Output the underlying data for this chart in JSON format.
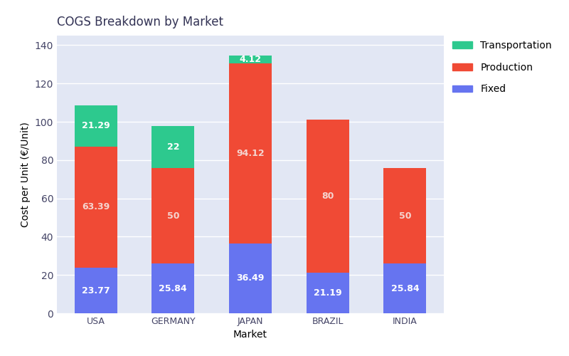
{
  "markets": [
    "USA",
    "GERMANY",
    "JAPAN",
    "BRAZIL",
    "INDIA"
  ],
  "fixed": [
    23.77,
    25.84,
    36.49,
    21.19,
    25.84
  ],
  "production": [
    63.39,
    50.0,
    94.12,
    80.0,
    50.0
  ],
  "transportation": [
    21.29,
    22.0,
    4.12,
    0.0,
    0.0
  ],
  "fixed_color": "#6674f0",
  "production_color": "#f04a35",
  "transportation_color": "#2dc98e",
  "title": "COGS Breakdown by Market",
  "xlabel": "Market",
  "ylabel": "Cost per Unit (€/Unit)",
  "ylim": [
    0,
    145
  ],
  "yticks": [
    0,
    20,
    40,
    60,
    80,
    100,
    120,
    140
  ],
  "plot_bg_color": "#e2e7f4",
  "fig_bg_color": "#ffffff",
  "legend_labels": [
    "Transportation",
    "Production",
    "Fixed"
  ],
  "legend_colors": [
    "#2dc98e",
    "#f04a35",
    "#6674f0"
  ],
  "bar_width": 0.55,
  "title_fontsize": 12,
  "label_fontsize": 10,
  "tick_fontsize": 9,
  "value_fontsize": 9,
  "fixed_label_color": "#ffffff",
  "prod_label_color": "#f5d5d0",
  "trans_label_color": "#ffffff",
  "label_values_fixed": [
    "23.77",
    "25.84",
    "36.49",
    "21.19",
    "25.84"
  ],
  "label_values_prod": [
    "63.39",
    "50",
    "94.12",
    "80",
    "50"
  ],
  "label_values_trans": [
    "21.29",
    "22",
    "4.12"
  ]
}
